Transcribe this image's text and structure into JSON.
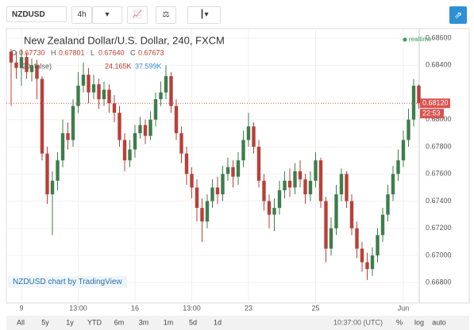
{
  "toolbar": {
    "symbol": "NZDUSD",
    "interval": "4h"
  },
  "chart_data": {
    "type": "candlestick",
    "title": "New Zealand Dollar/U.S. Dollar, 240, FXCM",
    "realtime": "realtime",
    "ohlc_labels": [
      "O",
      "H",
      "L",
      "C"
    ],
    "ohlc_values": [
      "0.67730",
      "0.67801",
      "0.67640",
      "0.67673"
    ],
    "volume_legend": [
      "20, false)",
      "24.165K",
      "37.599K"
    ],
    "last_price_label": "0.68120",
    "countdown": "22:53",
    "watermark": "NZDUSD chart by TradingView",
    "x": [
      null,
      null,
      "9",
      null,
      null,
      null,
      null,
      null,
      null,
      null,
      null,
      null,
      null,
      "13:00",
      null,
      null,
      null,
      null,
      null,
      null,
      null,
      null,
      null,
      null,
      "16",
      null,
      null,
      null,
      null,
      null,
      null,
      null,
      null,
      null,
      null,
      "13:00",
      null,
      null,
      null,
      null,
      null,
      null,
      null,
      null,
      null,
      null,
      "23",
      null,
      null,
      null,
      null,
      null,
      null,
      null,
      null,
      null,
      null,
      null,
      null,
      "25",
      null,
      null,
      null,
      null,
      null,
      null,
      null,
      null,
      null,
      null,
      null,
      null,
      null,
      null,
      null,
      null,
      "Jun",
      null,
      null,
      null
    ],
    "open": [
      0.685,
      0.6842,
      0.6838,
      0.6846,
      0.6835,
      0.684,
      0.683,
      0.6775,
      0.6745,
      0.6755,
      0.677,
      0.679,
      0.6785,
      0.681,
      0.6825,
      0.6833,
      0.682,
      0.6826,
      0.6815,
      0.6822,
      0.6812,
      0.6805,
      0.6785,
      0.677,
      0.6778,
      0.679,
      0.6796,
      0.6788,
      0.68,
      0.6815,
      0.682,
      0.6832,
      0.681,
      0.679,
      0.6775,
      0.676,
      0.675,
      0.6735,
      0.6725,
      0.674,
      0.675,
      0.6745,
      0.676,
      0.6765,
      0.6758,
      0.677,
      0.6785,
      0.6795,
      0.678,
      0.6755,
      0.674,
      0.673,
      0.6735,
      0.6748,
      0.6755,
      0.675,
      0.6762,
      0.6756,
      0.6745,
      0.6755,
      0.677,
      0.674,
      0.6705,
      0.672,
      0.6745,
      0.676,
      0.674,
      0.672,
      0.6705,
      0.6695,
      0.669,
      0.67,
      0.6715,
      0.673,
      0.6745,
      0.676,
      0.677,
      0.6785,
      0.68,
      0.6825
    ],
    "high": [
      0.6852,
      0.685,
      0.6852,
      0.6849,
      0.6845,
      0.6844,
      0.6832,
      0.678,
      0.6762,
      0.6776,
      0.68,
      0.6798,
      0.6815,
      0.6835,
      0.6842,
      0.6838,
      0.6833,
      0.683,
      0.6828,
      0.6826,
      0.6818,
      0.681,
      0.679,
      0.6785,
      0.6796,
      0.6802,
      0.68,
      0.6806,
      0.682,
      0.6828,
      0.684,
      0.6835,
      0.6815,
      0.6795,
      0.678,
      0.6765,
      0.6756,
      0.6742,
      0.6745,
      0.6756,
      0.6758,
      0.6766,
      0.6772,
      0.677,
      0.6776,
      0.6792,
      0.6805,
      0.6798,
      0.6785,
      0.676,
      0.6745,
      0.6742,
      0.6755,
      0.6762,
      0.6764,
      0.6768,
      0.677,
      0.676,
      0.6762,
      0.6776,
      0.6772,
      0.6743,
      0.6728,
      0.6752,
      0.6764,
      0.6762,
      0.6745,
      0.6725,
      0.671,
      0.6702,
      0.6706,
      0.672,
      0.6735,
      0.6752,
      0.6766,
      0.6778,
      0.6792,
      0.6808,
      0.683,
      0.6826
    ],
    "low": [
      0.681,
      0.683,
      0.6825,
      0.683,
      0.6828,
      0.6815,
      0.677,
      0.6738,
      0.6715,
      0.6748,
      0.6765,
      0.6778,
      0.678,
      0.6805,
      0.682,
      0.6812,
      0.6815,
      0.6808,
      0.681,
      0.6805,
      0.6798,
      0.678,
      0.6762,
      0.6765,
      0.6772,
      0.6786,
      0.6782,
      0.6785,
      0.6795,
      0.681,
      0.6815,
      0.6805,
      0.6785,
      0.6768,
      0.6752,
      0.6742,
      0.6725,
      0.671,
      0.672,
      0.6735,
      0.6738,
      0.674,
      0.6755,
      0.675,
      0.6752,
      0.6765,
      0.678,
      0.6775,
      0.675,
      0.6733,
      0.672,
      0.6718,
      0.673,
      0.6742,
      0.6743,
      0.6745,
      0.675,
      0.6738,
      0.674,
      0.675,
      0.6735,
      0.6695,
      0.67,
      0.6715,
      0.674,
      0.6735,
      0.6715,
      0.6698,
      0.6688,
      0.6682,
      0.6685,
      0.6695,
      0.671,
      0.6725,
      0.674,
      0.6755,
      0.6765,
      0.678,
      0.6795,
      0.6808
    ],
    "close": [
      0.6842,
      0.6838,
      0.6846,
      0.6835,
      0.684,
      0.683,
      0.6775,
      0.6745,
      0.6755,
      0.677,
      0.679,
      0.6785,
      0.681,
      0.6825,
      0.6833,
      0.682,
      0.6826,
      0.6815,
      0.6822,
      0.6812,
      0.6805,
      0.6785,
      0.677,
      0.6778,
      0.679,
      0.6796,
      0.6788,
      0.68,
      0.6815,
      0.682,
      0.6832,
      0.681,
      0.679,
      0.6775,
      0.676,
      0.675,
      0.6735,
      0.6725,
      0.674,
      0.675,
      0.6745,
      0.676,
      0.6765,
      0.6758,
      0.677,
      0.6785,
      0.6795,
      0.678,
      0.6755,
      0.674,
      0.673,
      0.6735,
      0.6748,
      0.6755,
      0.675,
      0.6762,
      0.6756,
      0.6745,
      0.6755,
      0.677,
      0.674,
      0.6705,
      0.672,
      0.6745,
      0.676,
      0.674,
      0.672,
      0.6705,
      0.6695,
      0.669,
      0.67,
      0.6715,
      0.673,
      0.6745,
      0.676,
      0.677,
      0.6785,
      0.68,
      0.6825,
      0.6812
    ],
    "up_color": "#3e7d4c",
    "down_color": "#b8403a",
    "ylim": [
      0.6665,
      0.6867
    ],
    "yticks": [
      {
        "value": 0.668,
        "label": "0.66800"
      },
      {
        "value": 0.67,
        "label": "0.67000"
      },
      {
        "value": 0.672,
        "label": "0.67200"
      },
      {
        "value": 0.674,
        "label": "0.67400"
      },
      {
        "value": 0.676,
        "label": "0.67600"
      },
      {
        "value": 0.678,
        "label": "0.67800"
      },
      {
        "value": 0.68,
        "label": "0.68000"
      },
      {
        "value": 0.684,
        "label": "0.68400"
      },
      {
        "value": 0.686,
        "label": "0.68600"
      }
    ],
    "grid": true
  },
  "bottom_bar": {
    "ranges": [
      "All",
      "5y",
      "1y",
      "YTD",
      "6m",
      "3m",
      "1m",
      "5d",
      "1d"
    ],
    "time": "10:37:00 (UTC)",
    "options": [
      "%",
      "log",
      "auto"
    ]
  }
}
